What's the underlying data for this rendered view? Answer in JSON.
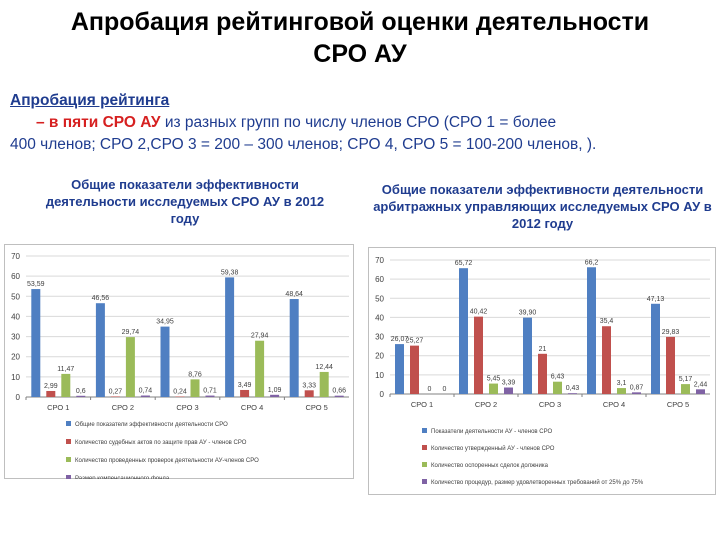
{
  "title_line1": "Апробация рейтинговой оценки деятельности",
  "title_line2": "СРО АУ",
  "intro": {
    "lead": "Апробация рейтинга",
    "dash": "– в пяти СРО АУ",
    "rest": " из разных групп по числу членов СРО (СРО 1 = более",
    "line2": "400 членов; СРО 2,СРО 3 = 200 – 300 членов; СРО 4, СРО 5 = 100-200 членов, )."
  },
  "left_heading": "Общие показатели эффективности деятельности исследуемых СРО АУ в 2012 году",
  "right_heading": "Общие показатели эффективности деятельности арбитражных управляющих исследуемых СРО АУ в 2012 году",
  "colors": {
    "blue": "#4f7fc2",
    "red": "#c0504d",
    "green": "#9bbb59",
    "purple": "#7f62a4"
  },
  "chart_data": [
    {
      "type": "bar",
      "title": "Общие показатели эффективности деятельности исследуемых СРО АУ в 2012 году",
      "categories": [
        "СРО 1",
        "СРО 2",
        "СРО 3",
        "СРО 4",
        "СРО 5"
      ],
      "ylim": [
        0,
        70
      ],
      "yticks": [
        0,
        10,
        20,
        30,
        40,
        50,
        60,
        70
      ],
      "series": [
        {
          "name": "Общие показатели эффективности деятельности СРО",
          "values": [
            53.59,
            46.56,
            34.95,
            59.38,
            48.64
          ],
          "labels": [
            "53,59",
            "46,56",
            "34,95",
            "59,38",
            "48,64"
          ]
        },
        {
          "name": "Количество судебных актов по защите прав АУ - членов СРО",
          "values": [
            2.99,
            0.27,
            0.24,
            3.49,
            3.33
          ],
          "labels": [
            "2,99",
            "0,27",
            "0,24",
            "3,49",
            "3,33"
          ]
        },
        {
          "name": "Количество проведенных проверок деятельности АУ-членов СРО",
          "values": [
            11.47,
            29.74,
            8.76,
            27.94,
            12.44
          ],
          "labels": [
            "11,47",
            "29,74",
            "8,76",
            "27,94",
            "12,44"
          ]
        },
        {
          "name": "Размер компенсационного фонда",
          "values": [
            0.6,
            0.74,
            0.71,
            1.09,
            0.66
          ],
          "labels": [
            "0,6",
            "0,74",
            "0,71",
            "1,09",
            "0,66"
          ]
        }
      ]
    },
    {
      "type": "bar",
      "title": "Общие показатели эффективности деятельности арбитражных управляющих исследуемых СРО АУ в 2012 году",
      "categories": [
        "СРО 1",
        "СРО 2",
        "СРО 3",
        "СРО 4",
        "СРО 5"
      ],
      "ylim": [
        0,
        70
      ],
      "yticks": [
        0,
        10,
        20,
        30,
        40,
        50,
        60,
        70
      ],
      "series": [
        {
          "name": "Показатели деятельности АУ - членов СРО",
          "values": [
            26.07,
            65.72,
            39.9,
            66.2,
            47.13
          ],
          "labels": [
            "26,07",
            "65,72",
            "39,90",
            "66,2",
            "47,13"
          ]
        },
        {
          "name": "Количество утвержденный АУ - членов СРО",
          "values": [
            25.27,
            40.42,
            21,
            35.4,
            29.83
          ],
          "labels": [
            "25,27",
            "40,42",
            "21",
            "35,4",
            "29,83"
          ]
        },
        {
          "name": "Количество оспоренных сделок должника",
          "values": [
            0,
            5.45,
            6.43,
            3.1,
            5.17
          ],
          "labels": [
            "0",
            "5,45",
            "6,43",
            "3,1",
            "5,17"
          ]
        },
        {
          "name": "Количество процедур, размер удовлетворенных требований от 25% до 75%",
          "values": [
            0,
            3.39,
            0.43,
            0.87,
            2.44
          ],
          "labels": [
            "0",
            "3,39",
            "0,43",
            "0,87",
            "2,44"
          ]
        }
      ]
    }
  ]
}
